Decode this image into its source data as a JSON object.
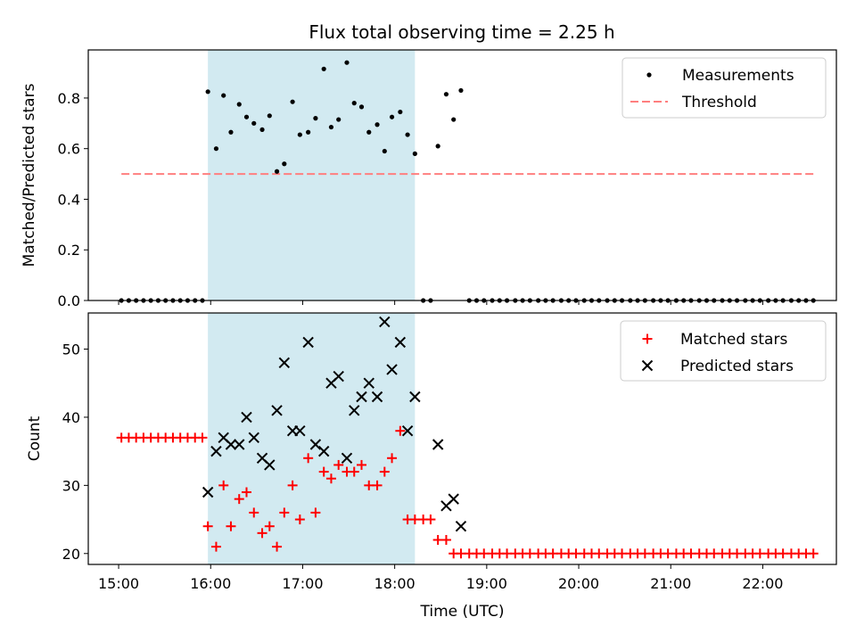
{
  "chart_data": {
    "title": "Flux total observing time = 2.25 h",
    "xlabel": "Time (UTC)",
    "xlim": [
      14.67,
      22.8
    ],
    "x_ticks": [
      "15:00",
      "16:00",
      "17:00",
      "18:00",
      "19:00",
      "20:00",
      "21:00",
      "22:00"
    ],
    "highlight": {
      "start": 15.97,
      "end": 18.22,
      "color": "#add8e6"
    },
    "top": {
      "type": "scatter",
      "ylabel": "Matched/Predicted stars",
      "ylim": [
        0,
        0.99
      ],
      "y_ticks": [
        "0.0",
        "0.2",
        "0.4",
        "0.6",
        "0.8"
      ],
      "legend": {
        "position": "upper-right",
        "entries": [
          "Measurements",
          "Threshold"
        ]
      },
      "threshold": {
        "name": "Threshold",
        "value": 0.5,
        "x_start": 15.03,
        "x_end": 22.55,
        "color": "#ff7f7f",
        "style": "dashed"
      },
      "measurements": {
        "name": "Measurements",
        "color": "#000000",
        "x": [
          15.03,
          15.11,
          15.19,
          15.27,
          15.35,
          15.43,
          15.51,
          15.59,
          15.67,
          15.75,
          15.83,
          15.91,
          15.97,
          16.06,
          16.14,
          16.22,
          16.31,
          16.39,
          16.47,
          16.56,
          16.64,
          16.72,
          16.8,
          16.89,
          16.97,
          17.06,
          17.14,
          17.23,
          17.31,
          17.39,
          17.48,
          17.56,
          17.64,
          17.72,
          17.81,
          17.89,
          17.97,
          18.06,
          18.14,
          18.22,
          18.31,
          18.39,
          18.47,
          18.56,
          18.64,
          18.72,
          18.81,
          18.89,
          18.97,
          19.06,
          19.14,
          19.22,
          19.31,
          19.39,
          19.47,
          19.56,
          19.64,
          19.72,
          19.81,
          19.89,
          19.97,
          20.06,
          20.14,
          20.22,
          20.31,
          20.39,
          20.47,
          20.56,
          20.64,
          20.72,
          20.81,
          20.89,
          20.97,
          21.06,
          21.14,
          21.22,
          21.31,
          21.39,
          21.47,
          21.56,
          21.64,
          21.72,
          21.81,
          21.89,
          21.97,
          22.06,
          22.14,
          22.22,
          22.31,
          22.39,
          22.47,
          22.55
        ],
        "y": [
          0,
          0,
          0,
          0,
          0,
          0,
          0,
          0,
          0,
          0,
          0,
          0,
          0.825,
          0.6,
          0.81,
          0.665,
          0.775,
          0.725,
          0.7,
          0.675,
          0.73,
          0.51,
          0.54,
          0.785,
          0.655,
          0.665,
          0.72,
          0.915,
          0.685,
          0.715,
          0.94,
          0.78,
          0.765,
          0.665,
          0.695,
          0.59,
          0.725,
          0.745,
          0.655,
          0.58,
          0,
          0,
          0.61,
          0.815,
          0.715,
          0.83,
          0,
          0,
          0,
          0,
          0,
          0,
          0,
          0,
          0,
          0,
          0,
          0,
          0,
          0,
          0,
          0,
          0,
          0,
          0,
          0,
          0,
          0,
          0,
          0,
          0,
          0,
          0,
          0,
          0,
          0,
          0,
          0,
          0,
          0,
          0,
          0,
          0,
          0,
          0,
          0,
          0,
          0,
          0,
          0,
          0,
          0
        ]
      }
    },
    "bottom": {
      "type": "scatter",
      "ylabel": "Count",
      "ylim": [
        18.4,
        55.3
      ],
      "y_ticks": [
        "20",
        "30",
        "40",
        "50"
      ],
      "legend": {
        "position": "upper-right",
        "entries": [
          "Matched stars",
          "Predicted stars"
        ]
      },
      "series": [
        {
          "name": "Matched stars",
          "marker": "+",
          "color": "#ff0000",
          "x": [
            15.03,
            15.11,
            15.19,
            15.27,
            15.35,
            15.43,
            15.51,
            15.59,
            15.67,
            15.75,
            15.83,
            15.91,
            15.97,
            16.06,
            16.14,
            16.22,
            16.31,
            16.39,
            16.47,
            16.56,
            16.64,
            16.72,
            16.8,
            16.89,
            16.97,
            17.06,
            17.14,
            17.23,
            17.31,
            17.39,
            17.48,
            17.56,
            17.64,
            17.72,
            17.81,
            17.89,
            17.97,
            18.06,
            18.14,
            18.22,
            18.31,
            18.39,
            18.47,
            18.56,
            18.64,
            18.72,
            18.81,
            18.89,
            18.97,
            19.06,
            19.14,
            19.22,
            19.31,
            19.39,
            19.47,
            19.56,
            19.64,
            19.72,
            19.81,
            19.89,
            19.97,
            20.06,
            20.14,
            20.22,
            20.31,
            20.39,
            20.47,
            20.56,
            20.64,
            20.72,
            20.81,
            20.89,
            20.97,
            21.06,
            21.14,
            21.22,
            21.31,
            21.39,
            21.47,
            21.56,
            21.64,
            21.72,
            21.81,
            21.89,
            21.97,
            22.06,
            22.14,
            22.22,
            22.31,
            22.39,
            22.47,
            22.55
          ],
          "y": [
            37,
            37,
            37,
            37,
            37,
            37,
            37,
            37,
            37,
            37,
            37,
            37,
            24,
            21,
            30,
            24,
            28,
            29,
            26,
            23,
            24,
            21,
            26,
            30,
            25,
            34,
            26,
            32,
            31,
            33,
            32,
            32,
            33,
            30,
            30,
            32,
            34,
            38,
            25,
            25,
            25,
            25,
            22,
            22,
            20,
            20,
            20,
            20,
            20,
            20,
            20,
            20,
            20,
            20,
            20,
            20,
            20,
            20,
            20,
            20,
            20,
            20,
            20,
            20,
            20,
            20,
            20,
            20,
            20,
            20,
            20,
            20,
            20,
            20,
            20,
            20,
            20,
            20,
            20,
            20,
            20,
            20,
            20,
            20,
            20,
            20,
            20,
            20,
            20,
            20,
            20,
            20
          ]
        },
        {
          "name": "Predicted stars",
          "marker": "x",
          "color": "#000000",
          "x": [
            15.97,
            16.06,
            16.14,
            16.22,
            16.31,
            16.39,
            16.47,
            16.56,
            16.64,
            16.72,
            16.8,
            16.89,
            16.97,
            17.06,
            17.14,
            17.23,
            17.31,
            17.39,
            17.48,
            17.56,
            17.64,
            17.72,
            17.81,
            17.89,
            17.97,
            18.06,
            18.14,
            18.22,
            18.47,
            18.56,
            18.64,
            18.72
          ],
          "y": [
            29,
            35,
            37,
            36,
            36,
            40,
            37,
            34,
            33,
            41,
            48,
            38,
            38,
            51,
            36,
            35,
            45,
            46,
            34,
            41,
            43,
            45,
            43,
            54,
            47,
            51,
            38,
            43,
            36,
            27,
            28,
            24
          ]
        }
      ]
    }
  }
}
